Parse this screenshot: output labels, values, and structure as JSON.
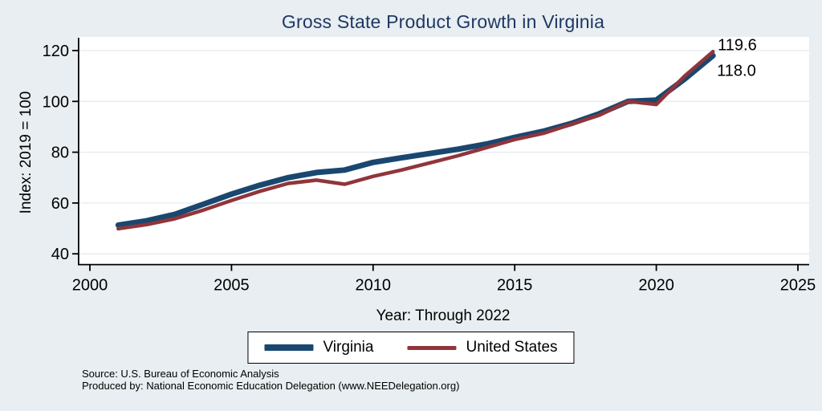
{
  "title": "Gross State Product Growth in Virginia",
  "chart_data": {
    "type": "line",
    "title": "Gross State Product Growth in Virginia",
    "xlabel": "Year: Through 2022",
    "ylabel": "Index: 2019 = 100",
    "xlim": [
      2000,
      2025
    ],
    "ylim": [
      40,
      120
    ],
    "xticks": [
      2000,
      2005,
      2010,
      2015,
      2020,
      2025
    ],
    "yticks": [
      40,
      60,
      80,
      100,
      120
    ],
    "grid": "horizontal",
    "legend_position": "bottom-center",
    "background_color": "#e8eef1",
    "plot_background_color": "#ffffff",
    "x": [
      2001,
      2002,
      2003,
      2004,
      2005,
      2006,
      2007,
      2008,
      2009,
      2010,
      2011,
      2012,
      2013,
      2014,
      2015,
      2016,
      2017,
      2018,
      2019,
      2020,
      2021,
      2022
    ],
    "series": [
      {
        "name": "Virginia",
        "color": "#1a476f",
        "end_label": "118.0",
        "values": [
          51.3,
          53.0,
          55.5,
          59.5,
          63.5,
          67.0,
          70.0,
          72.0,
          73.0,
          76.0,
          77.8,
          79.5,
          81.2,
          83.2,
          85.8,
          88.2,
          91.3,
          95.2,
          100.0,
          100.5,
          108.8,
          118.0
        ]
      },
      {
        "name": "United States",
        "color": "#90353b",
        "end_label": "119.6",
        "values": [
          49.9,
          51.5,
          53.8,
          57.2,
          61.0,
          64.6,
          67.7,
          69.0,
          67.4,
          70.5,
          73.0,
          75.8,
          78.6,
          81.8,
          85.0,
          87.4,
          91.0,
          94.6,
          100.0,
          98.8,
          110.0,
          119.6
        ]
      }
    ]
  },
  "footer": {
    "source": "Source: U.S. Bureau of Economic Analysis",
    "produced_by": "Produced by: National Economic Education Delegation (www.NEEDelegation.org)"
  }
}
